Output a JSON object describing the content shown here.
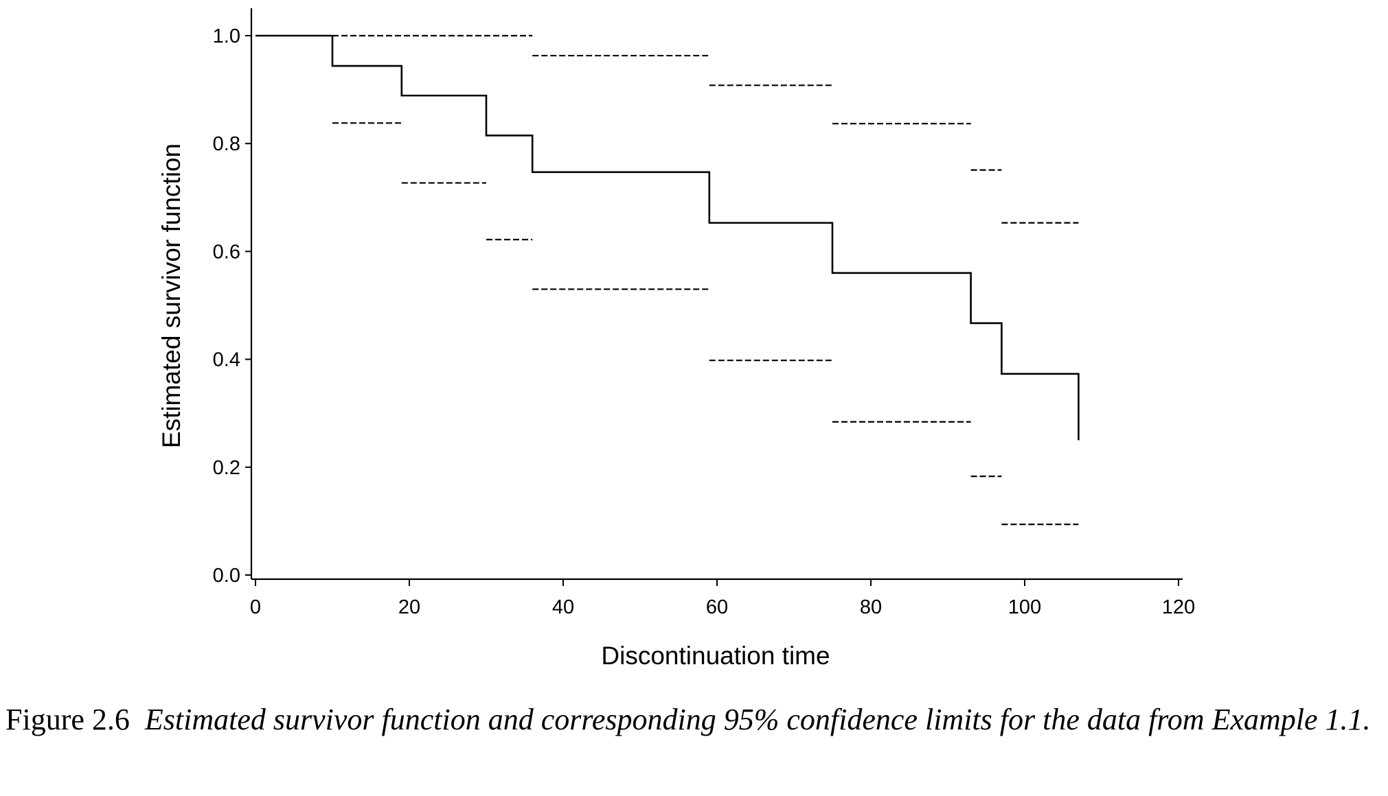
{
  "chart_data": {
    "type": "line",
    "title": "",
    "xlabel": "Discontinuation time",
    "ylabel": "Estimated survivor function",
    "xlim": [
      0,
      120
    ],
    "ylim": [
      0,
      1.0
    ],
    "xticks": [
      0,
      20,
      40,
      60,
      80,
      100,
      120
    ],
    "yticks": [
      0.0,
      0.2,
      0.4,
      0.6,
      0.8,
      1.0
    ],
    "xtick_labels": [
      "0",
      "20",
      "40",
      "60",
      "80",
      "100",
      "120"
    ],
    "ytick_labels": [
      "0.0",
      "0.2",
      "0.4",
      "0.6",
      "0.8",
      "1.0"
    ],
    "grid": false,
    "legend": "none",
    "series": [
      {
        "style": "solid step",
        "x": [
          0,
          10,
          19,
          30,
          36,
          59,
          75,
          93,
          97,
          107
        ],
        "values": [
          1.0,
          0.944,
          0.889,
          0.815,
          0.747,
          0.653,
          0.56,
          0.467,
          0.373,
          0.25
        ]
      },
      {
        "style": "dashed step (upper 95% limit)",
        "segments": [
          {
            "x": [
              10,
              36
            ],
            "value": 1.0
          },
          {
            "x": [
              36,
              59
            ],
            "value": 0.963
          },
          {
            "x": [
              59,
              75
            ],
            "value": 0.908
          },
          {
            "x": [
              75,
              93
            ],
            "value": 0.837
          },
          {
            "x": [
              93,
              97
            ],
            "value": 0.751
          },
          {
            "x": [
              97,
              107
            ],
            "value": 0.653
          }
        ]
      },
      {
        "style": "dashed step (lower 95% limit)",
        "segments": [
          {
            "x": [
              10,
              19
            ],
            "value": 0.838
          },
          {
            "x": [
              19,
              30
            ],
            "value": 0.727
          },
          {
            "x": [
              30,
              36
            ],
            "value": 0.622
          },
          {
            "x": [
              36,
              59
            ],
            "value": 0.53
          },
          {
            "x": [
              59,
              75
            ],
            "value": 0.398
          },
          {
            "x": [
              75,
              93
            ],
            "value": 0.284
          },
          {
            "x": [
              93,
              97
            ],
            "value": 0.183
          },
          {
            "x": [
              97,
              107
            ],
            "value": 0.094
          }
        ]
      }
    ]
  },
  "caption": {
    "label": "Figure 2.6",
    "text": "Estimated survivor function and corresponding 95% confidence limits for the data from Example 1.1."
  }
}
